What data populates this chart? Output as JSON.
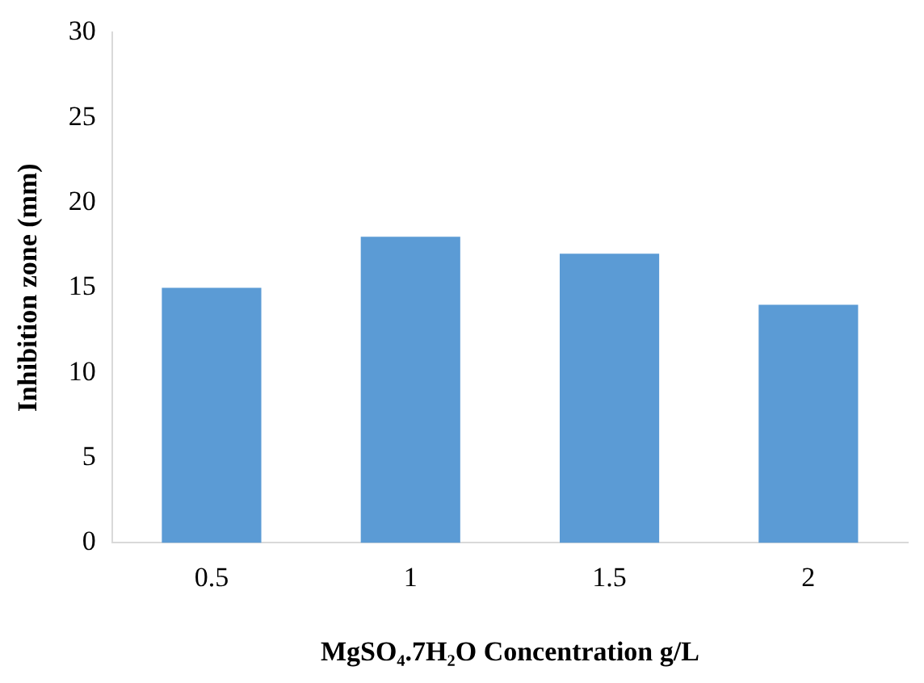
{
  "chart_data": {
    "type": "bar",
    "xlabel": "MgSO₄.7H₂O Concentration g/L",
    "ylabel": "Inhibition zone (mm)",
    "categories": [
      "0.5",
      "1",
      "1.5",
      "2"
    ],
    "values": [
      15,
      18,
      17,
      14
    ],
    "color": "#5b9bd5",
    "ylim": [
      0,
      30
    ],
    "yticks": [
      0,
      5,
      10,
      15,
      20,
      25,
      30
    ],
    "grid": false,
    "legend": false
  }
}
